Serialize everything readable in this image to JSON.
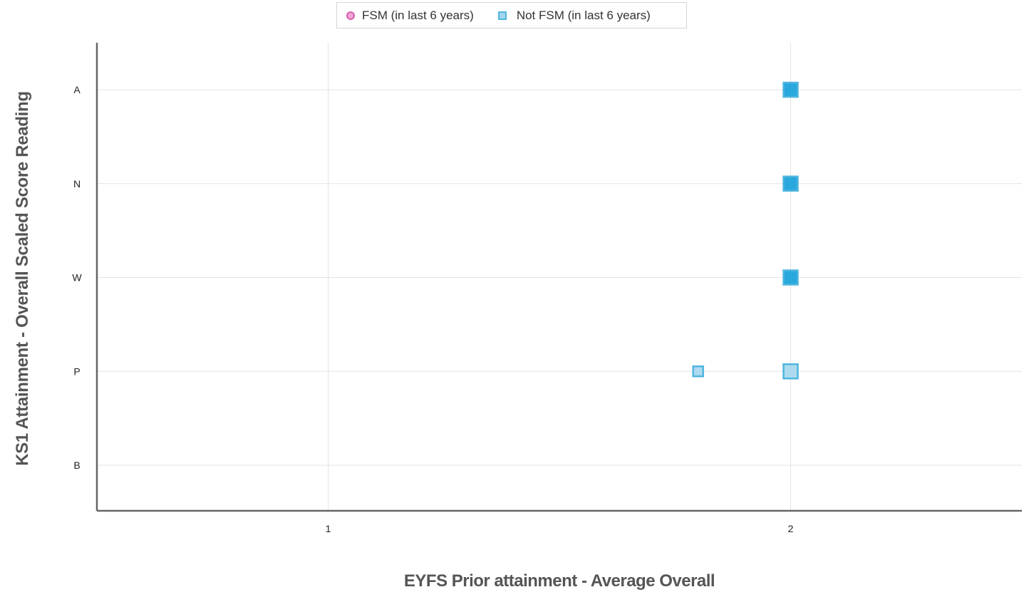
{
  "colors": {
    "fsm_fill": "#f0a6d6",
    "fsm_stroke": "#d860ac",
    "notfsm_fill_dark": "#29a8de",
    "notfsm_fill_light": "#a5d6ee",
    "notfsm_stroke": "#4fb6df",
    "grid": "#e3e3e3",
    "axis": "#666666"
  },
  "legend": {
    "items": [
      {
        "label": "FSM (in last 6 years)",
        "marker": "circle",
        "icon": "circle-marker-icon"
      },
      {
        "label": "Not FSM (in last 6 years)",
        "marker": "square",
        "icon": "square-marker-icon"
      }
    ]
  },
  "chart_data": {
    "type": "scatter",
    "title": "",
    "xlabel": "EYFS Prior attainment - Average Overall",
    "ylabel": "KS1 Attainment - Overall Scaled Score Reading",
    "x_ticks": [
      "1",
      "2"
    ],
    "xlim": [
      0.5,
      2.5
    ],
    "y_categories": [
      "B",
      "P",
      "W",
      "N",
      "A"
    ],
    "grid": true,
    "legend_position": "top",
    "series": [
      {
        "name": "FSM (in last 6 years)",
        "marker": "circle",
        "points": []
      },
      {
        "name": "Not FSM (in last 6 years)",
        "marker": "square",
        "points": [
          {
            "x": 2,
            "y": "A",
            "count": 3
          },
          {
            "x": 2,
            "y": "N",
            "count": 3
          },
          {
            "x": 2,
            "y": "W",
            "count": 3
          },
          {
            "x": 2,
            "y": "P",
            "count": 2
          },
          {
            "x": 1.8,
            "y": "P",
            "count": 1
          }
        ]
      }
    ]
  }
}
